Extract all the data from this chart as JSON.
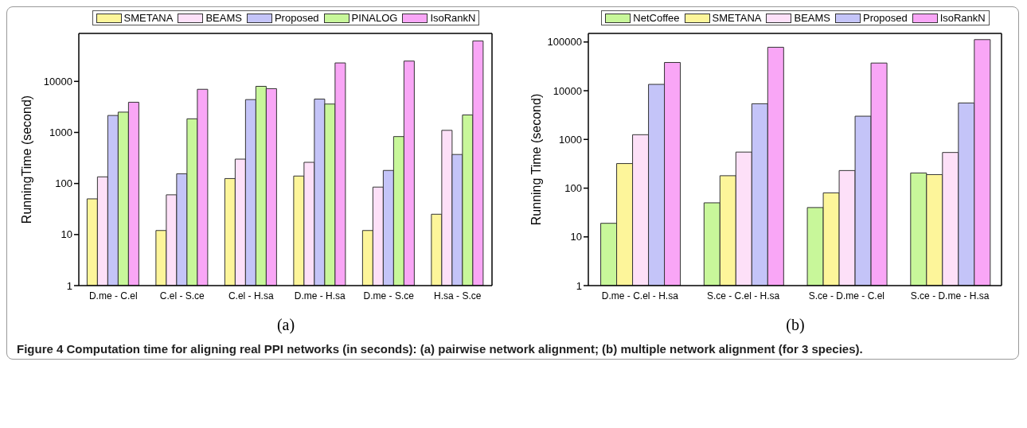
{
  "chart_data": [
    {
      "type": "bar",
      "xlabel": "(a)",
      "ylabel": "RunningTime (second)",
      "categories": [
        "D.me - C.el",
        "C.el - S.ce",
        "C.el - H.sa",
        "D.me - H.sa",
        "D.me - S.ce",
        "H.sa - S.ce"
      ],
      "series": [
        {
          "name": "SMETANA",
          "color": "#fdf59a",
          "values": [
            50,
            12,
            125,
            140,
            12,
            25
          ]
        },
        {
          "name": "BEAMS",
          "color": "#fde0f8",
          "values": [
            135,
            60,
            300,
            260,
            85,
            1100
          ]
        },
        {
          "name": "Proposed",
          "color": "#c4c4f8",
          "values": [
            2150,
            155,
            4400,
            4500,
            180,
            370
          ]
        },
        {
          "name": "PINALOG",
          "color": "#c8f79a",
          "values": [
            2500,
            1850,
            8000,
            3600,
            830,
            2200
          ]
        },
        {
          "name": "IsoRankN",
          "color": "#f9a6f6",
          "values": [
            3900,
            7000,
            7200,
            23000,
            25000,
            62000
          ]
        }
      ],
      "log": true,
      "ylim": [
        1,
        87000
      ],
      "yticks": [
        1,
        10,
        100,
        1000,
        10000
      ],
      "grid": false,
      "legend": "top"
    },
    {
      "type": "bar",
      "xlabel": "(b)",
      "ylabel": "Running Time (second)",
      "categories": [
        "D.me - C.el - H.sa",
        "S.ce - C.el - H.sa",
        "S.ce - D.me - C.el",
        "S.ce - D.me - H.sa"
      ],
      "series": [
        {
          "name": "NetCoffee",
          "color": "#c8f79a",
          "values": [
            19,
            50,
            40,
            205
          ]
        },
        {
          "name": "SMETANA",
          "color": "#fdf59a",
          "values": [
            320,
            180,
            80,
            190
          ]
        },
        {
          "name": "BEAMS",
          "color": "#fde0f8",
          "values": [
            1250,
            550,
            230,
            540
          ]
        },
        {
          "name": "Proposed",
          "color": "#c4c4f8",
          "values": [
            13500,
            5400,
            3000,
            5600
          ]
        },
        {
          "name": "IsoRankN",
          "color": "#f9a6f6",
          "values": [
            38000,
            78000,
            37000,
            112000
          ]
        }
      ],
      "log": true,
      "ylim": [
        1,
        150000
      ],
      "yticks": [
        1,
        10,
        100,
        1000,
        10000,
        100000
      ],
      "grid": false,
      "legend": "top",
      "annotations": [
        "Figure 4 Computation time for aligning real PPI networks (in seconds): (a) pairwise network alignment; (b) multiple network alignment (for 3 species)."
      ]
    }
  ]
}
